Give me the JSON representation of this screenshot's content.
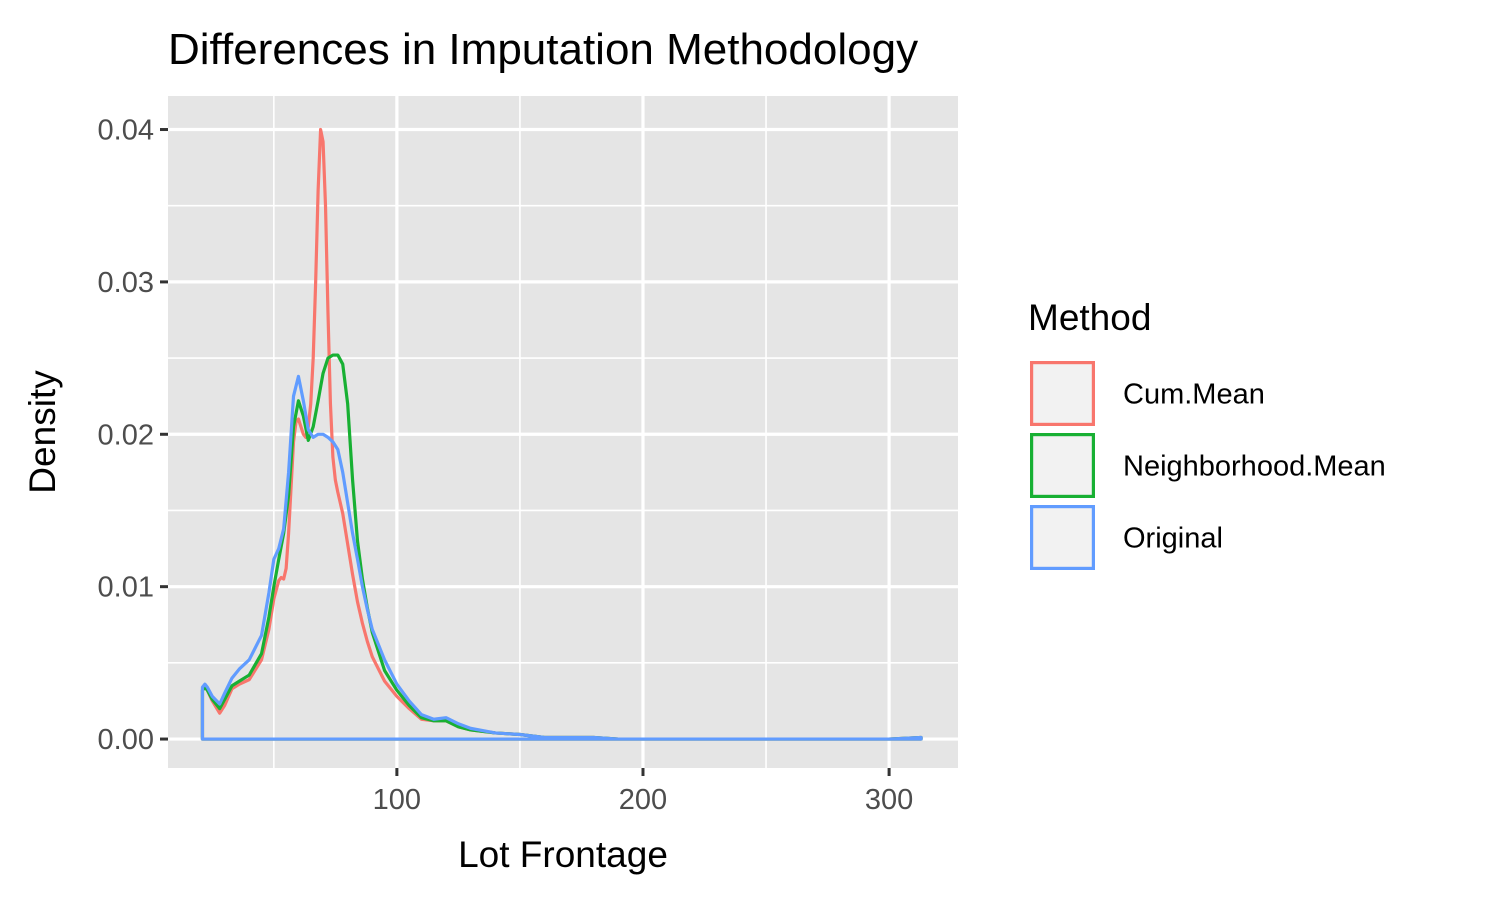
{
  "chart_data": {
    "type": "line",
    "subtype": "density",
    "title": "Differences in Imputation Methodology",
    "xlabel": "Lot Frontage",
    "ylabel": "Density",
    "xlim": [
      7,
      328
    ],
    "ylim": [
      -0.0019,
      0.0422
    ],
    "x_ticks": [
      100,
      200,
      300
    ],
    "x_tick_labels": [
      "100",
      "200",
      "300"
    ],
    "y_ticks": [
      0.0,
      0.01,
      0.02,
      0.03,
      0.04
    ],
    "y_tick_labels": [
      "0.00",
      "0.01",
      "0.02",
      "0.03",
      "0.04"
    ],
    "grid": true,
    "background": "#e5e5e5",
    "legend": {
      "title": "Method",
      "position": "right"
    },
    "series": [
      {
        "name": "Cum.Mean",
        "color": "#f8766d",
        "x": [
          21,
          22,
          23,
          25,
          28,
          30,
          33,
          36,
          40,
          45,
          48,
          50,
          52,
          53,
          54,
          55,
          56,
          57,
          58,
          59,
          60,
          61,
          62,
          63,
          64,
          65,
          66,
          67,
          68,
          69,
          70,
          71,
          72,
          73,
          74,
          75,
          76,
          78,
          80,
          82,
          84,
          86,
          88,
          90,
          95,
          100,
          105,
          110,
          115,
          120,
          125,
          130,
          140,
          150,
          160,
          170,
          180,
          190,
          200,
          250,
          300,
          313
        ],
        "y": [
          0.0032,
          0.0034,
          0.0032,
          0.0025,
          0.0017,
          0.0022,
          0.0033,
          0.0036,
          0.0039,
          0.0052,
          0.0072,
          0.0092,
          0.0104,
          0.0106,
          0.0105,
          0.0112,
          0.0135,
          0.0165,
          0.0195,
          0.0208,
          0.021,
          0.0205,
          0.02,
          0.0198,
          0.0205,
          0.022,
          0.025,
          0.03,
          0.036,
          0.04,
          0.0392,
          0.035,
          0.028,
          0.022,
          0.0185,
          0.017,
          0.0162,
          0.0148,
          0.0128,
          0.0108,
          0.009,
          0.0076,
          0.0064,
          0.0054,
          0.0038,
          0.0028,
          0.002,
          0.0013,
          0.0012,
          0.0012,
          0.0008,
          0.0006,
          0.0004,
          0.0003,
          0.0001,
          0.0001,
          0.0001,
          0.0,
          0.0,
          0.0,
          0.0,
          0.0001
        ]
      },
      {
        "name": "Neighborhood.Mean",
        "color": "#18b033",
        "x": [
          21,
          22,
          23,
          25,
          28,
          30,
          33,
          36,
          40,
          45,
          48,
          50,
          52,
          54,
          56,
          58,
          60,
          62,
          64,
          66,
          68,
          70,
          72,
          74,
          76,
          78,
          80,
          82,
          84,
          86,
          88,
          90,
          95,
          100,
          105,
          110,
          115,
          120,
          125,
          130,
          140,
          150,
          160,
          170,
          180,
          190,
          200,
          250,
          300,
          313
        ],
        "y": [
          0.0032,
          0.0034,
          0.0032,
          0.0026,
          0.002,
          0.0026,
          0.0035,
          0.0038,
          0.0042,
          0.0056,
          0.008,
          0.01,
          0.0118,
          0.0135,
          0.016,
          0.0205,
          0.0222,
          0.0212,
          0.0196,
          0.0205,
          0.0222,
          0.024,
          0.025,
          0.0252,
          0.0252,
          0.0246,
          0.022,
          0.017,
          0.013,
          0.0105,
          0.0086,
          0.007,
          0.0045,
          0.0032,
          0.0022,
          0.0014,
          0.0012,
          0.0012,
          0.0008,
          0.0006,
          0.0004,
          0.0003,
          0.0001,
          0.0001,
          0.0001,
          0.0,
          0.0,
          0.0,
          0.0,
          0.0001
        ]
      },
      {
        "name": "Original",
        "color": "#619cff",
        "x": [
          21,
          22,
          23,
          25,
          28,
          30,
          33,
          36,
          40,
          45,
          48,
          50,
          52,
          54,
          56,
          58,
          60,
          62,
          64,
          66,
          68,
          70,
          72,
          74,
          76,
          78,
          80,
          82,
          84,
          86,
          88,
          90,
          95,
          100,
          105,
          110,
          115,
          120,
          125,
          130,
          140,
          150,
          160,
          170,
          180,
          190,
          200,
          250,
          300,
          313
        ],
        "y": [
          0.0034,
          0.0036,
          0.0034,
          0.0028,
          0.0023,
          0.003,
          0.004,
          0.0046,
          0.0052,
          0.0068,
          0.0096,
          0.0118,
          0.0125,
          0.0138,
          0.0175,
          0.0225,
          0.0238,
          0.0222,
          0.0203,
          0.0198,
          0.02,
          0.02,
          0.0198,
          0.0195,
          0.019,
          0.0175,
          0.0155,
          0.0135,
          0.0118,
          0.01,
          0.0085,
          0.0072,
          0.0052,
          0.0036,
          0.0025,
          0.0016,
          0.0013,
          0.0014,
          0.001,
          0.0007,
          0.0004,
          0.0003,
          0.0001,
          0.0001,
          0.0001,
          0.0,
          0.0,
          0.0,
          0.0,
          0.0001
        ]
      }
    ]
  }
}
